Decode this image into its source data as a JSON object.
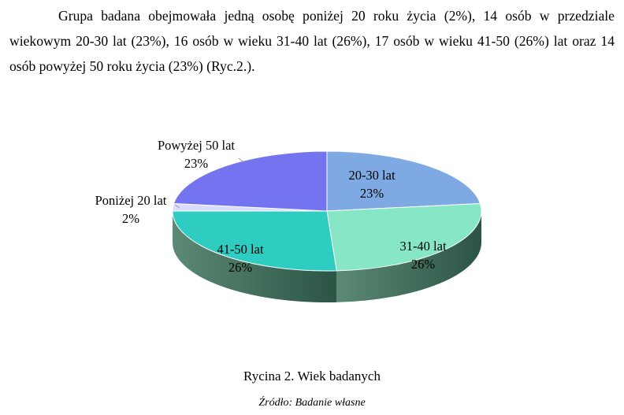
{
  "paragraph": "Grupa badana obejmowała jedną osobę poniżej 20 roku życia (2%), 14 osób w przedziale wiekowym 20-30 lat (23%), 16 osób w wieku 31-40 lat (26%), 17 osób w wieku 41-50 (26%) lat oraz 14 osób powyżej 50 roku życia (23%) (Ryc.2.).",
  "chart_data": {
    "type": "pie",
    "style": "3d",
    "slices": [
      {
        "label": "20-30 lat",
        "value_label": "23%",
        "value": 23,
        "color": "#7ea9e3"
      },
      {
        "label": "31-40 lat",
        "value_label": "26%",
        "value": 26,
        "color": "#86e6c6"
      },
      {
        "label": "41-50 lat",
        "value_label": "26%",
        "value": 26,
        "color": "#2fccc2"
      },
      {
        "label": "Poniżej 20 lat",
        "value_label": "2%",
        "value": 2,
        "color": "#d9dcfb"
      },
      {
        "label": "Powyżej 50 lat",
        "value_label": "23%",
        "value": 23,
        "color": "#7473f0"
      }
    ]
  },
  "caption": "Rycina 2. Wiek badanych",
  "source": "Źródło: Badanie własne"
}
